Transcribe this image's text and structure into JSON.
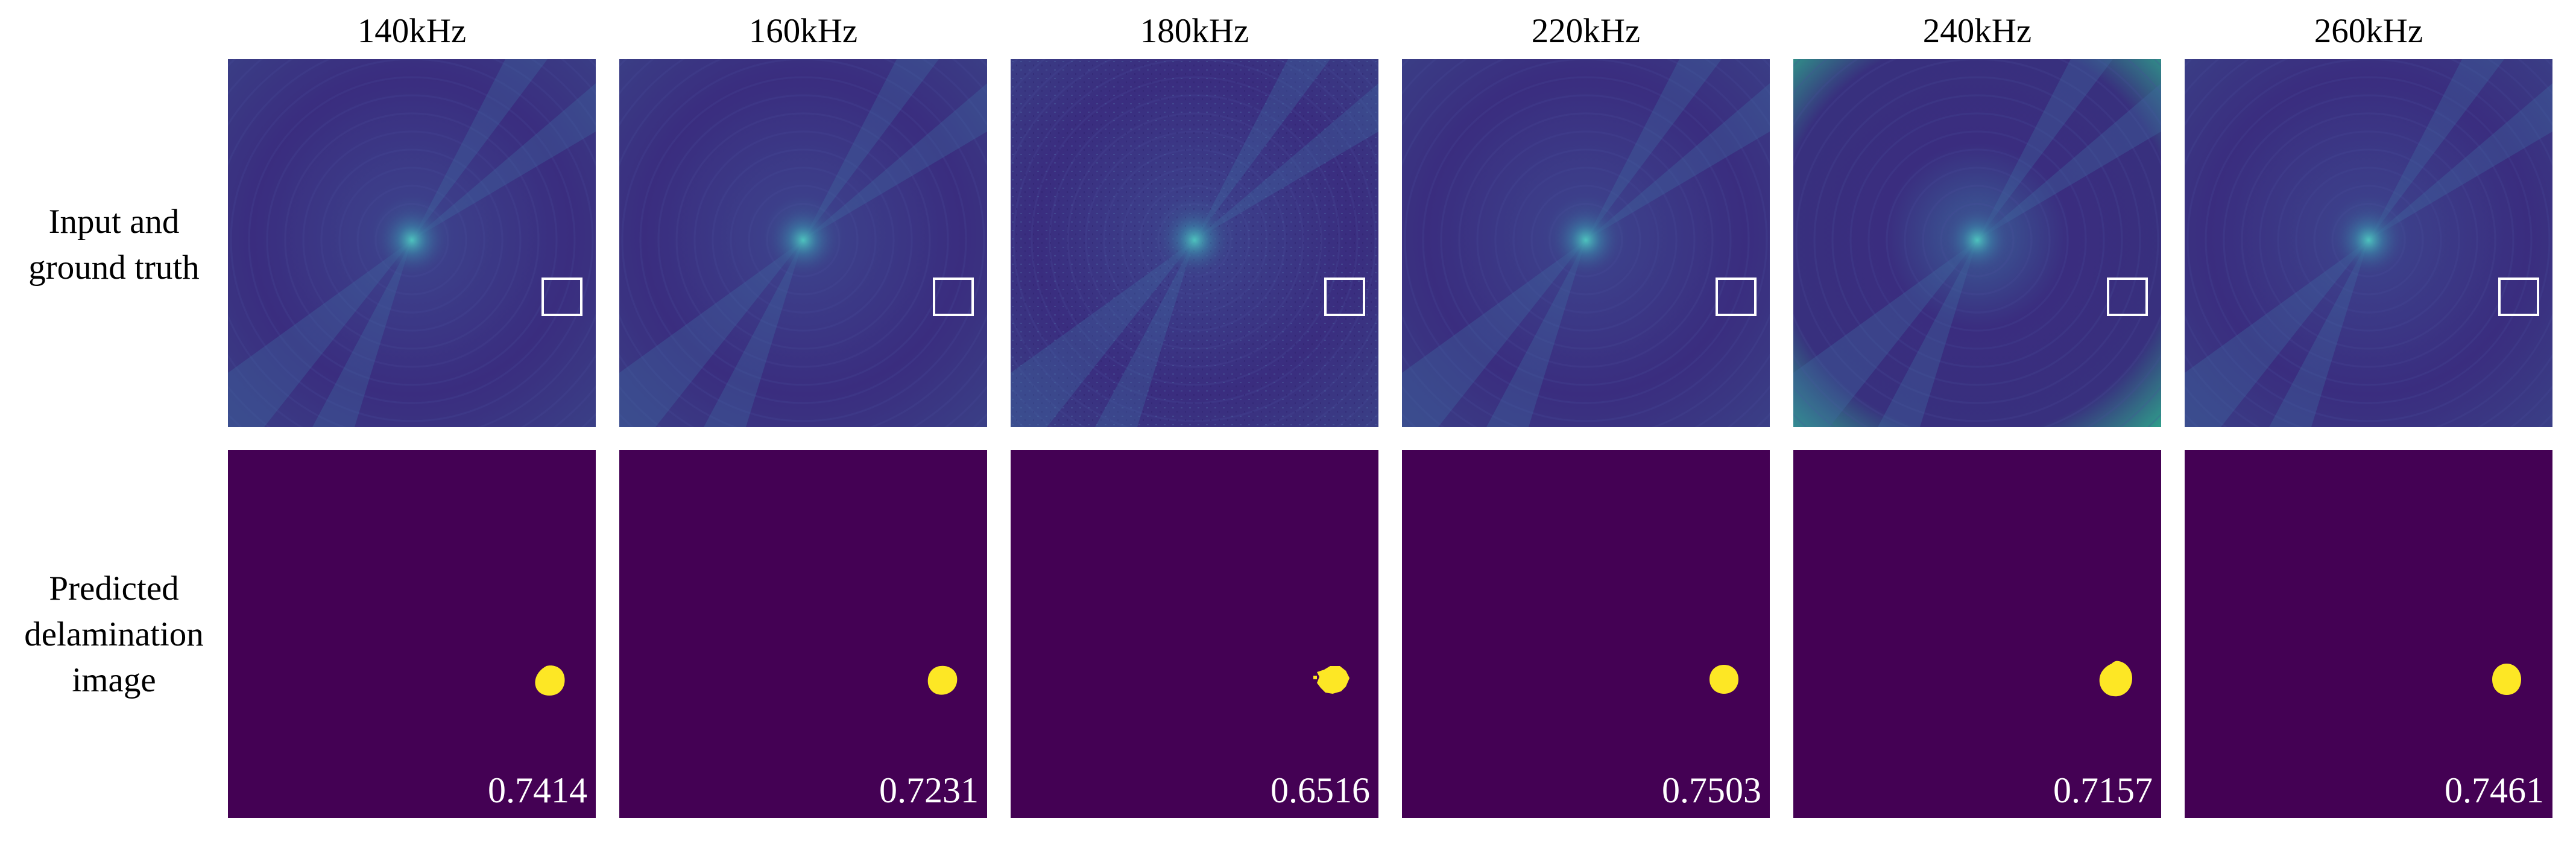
{
  "figure": {
    "columns": [
      {
        "freq": "140kHz",
        "score": "0.7414",
        "variant": "normal"
      },
      {
        "freq": "160kHz",
        "score": "0.7231",
        "variant": "normal"
      },
      {
        "freq": "180kHz",
        "score": "0.6516",
        "variant": "noisy"
      },
      {
        "freq": "220kHz",
        "score": "0.7503",
        "variant": "normal"
      },
      {
        "freq": "240kHz",
        "score": "0.7157",
        "variant": "bright"
      },
      {
        "freq": "260kHz",
        "score": "0.7461",
        "variant": "normal"
      }
    ],
    "row_labels": [
      {
        "lines": [
          "Input and",
          "ground truth"
        ]
      },
      {
        "lines": [
          "Predicted",
          "delamination",
          "image"
        ]
      }
    ],
    "colors": {
      "field_base": "#3a2d7f",
      "field_dark": "#2a1a66",
      "field_light": "#36689a",
      "bright_edge": "#2fa18a",
      "prediction_background": "#440154",
      "delamination": "#fde725",
      "ground_truth_box": "#ffffff",
      "score_text": "#ffffff"
    }
  }
}
